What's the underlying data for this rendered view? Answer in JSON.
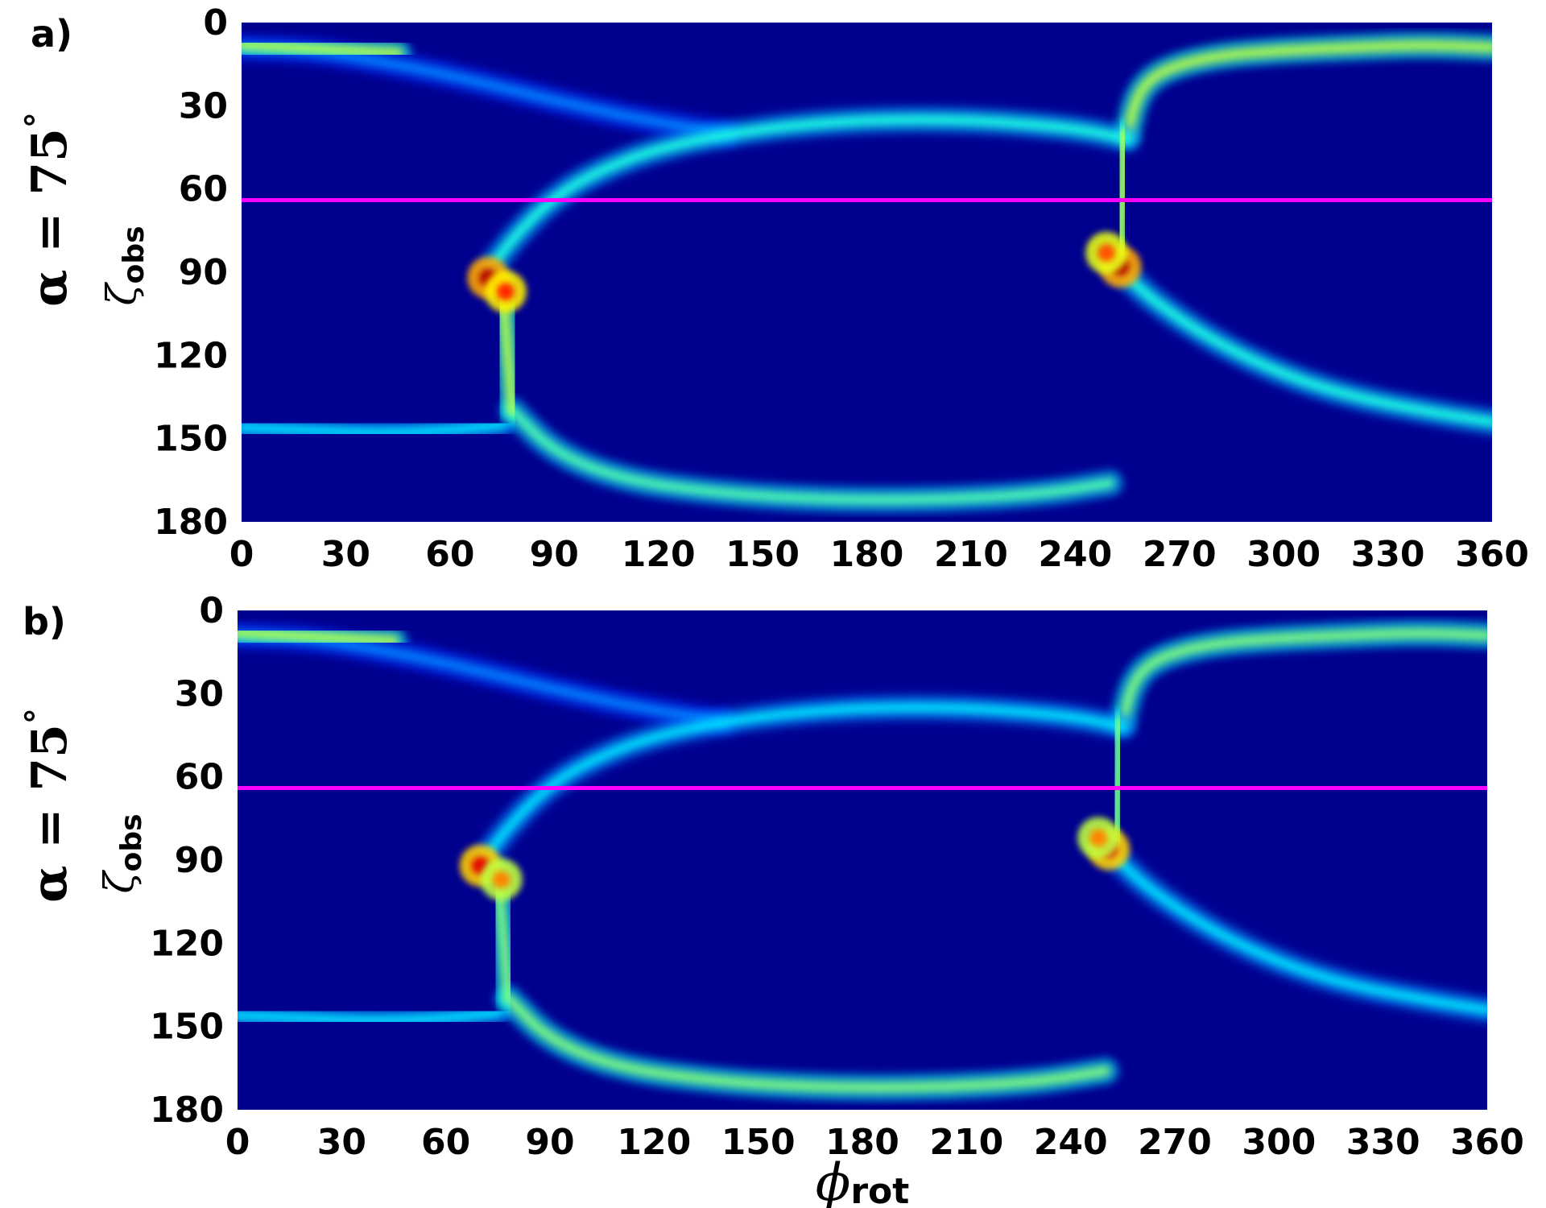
{
  "chart_data": [
    {
      "type": "heatmap",
      "panel_label": "a)",
      "alpha_prefix": "α = 75",
      "alpha_suffix": "°",
      "ylabel": "ζ",
      "ylabel_sub": "obs",
      "xlabel": "",
      "xlim": [
        0,
        360
      ],
      "ylim": [
        0,
        180
      ],
      "y_inverted": true,
      "xticks": [
        "0",
        "30",
        "60",
        "90",
        "120",
        "150",
        "180",
        "210",
        "240",
        "270",
        "300",
        "330",
        "360"
      ],
      "yticks": [
        "0",
        "30",
        "60",
        "90",
        "120",
        "150",
        "180"
      ],
      "colormap": "jet",
      "background_color": "#00008f",
      "hline": {
        "y": 64,
        "color": "#ff00ff"
      },
      "bands": [
        {
          "name": "arc-top-left",
          "points": [
            [
              0,
              9
            ],
            [
              20,
              10
            ],
            [
              40,
              14
            ],
            [
              60,
              19
            ],
            [
              80,
              25
            ],
            [
              100,
              31
            ],
            [
              120,
              36
            ],
            [
              140,
              40
            ]
          ],
          "level": 0.25
        },
        {
          "name": "arc-top-edge",
          "points": [
            [
              0,
              8
            ],
            [
              15,
              9
            ],
            [
              30,
              10
            ],
            [
              45,
              11
            ]
          ],
          "level": 0.55
        },
        {
          "name": "arc-top-right",
          "points": [
            [
              255,
              40
            ],
            [
              258,
              25
            ],
            [
              265,
              17
            ],
            [
              280,
              12
            ],
            [
              300,
              10
            ],
            [
              320,
              9
            ],
            [
              340,
              8
            ],
            [
              360,
              9
            ]
          ],
          "level": 0.55
        },
        {
          "name": "arc-upper-left",
          "points": [
            [
              72,
              88
            ],
            [
              78,
              78
            ],
            [
              88,
              65
            ],
            [
              100,
              55
            ],
            [
              120,
              45
            ],
            [
              150,
              38
            ],
            [
              180,
              35
            ],
            [
              210,
              35
            ],
            [
              240,
              38
            ],
            [
              255,
              42
            ]
          ],
          "level": 0.4
        },
        {
          "name": "arc-lower-right",
          "points": [
            [
              252,
              88
            ],
            [
              262,
              100
            ],
            [
              280,
              115
            ],
            [
              300,
              127
            ],
            [
              320,
              135
            ],
            [
              345,
              141
            ],
            [
              360,
              144
            ]
          ],
          "level": 0.4
        },
        {
          "name": "arc-lower-left",
          "points": [
            [
              0,
              146
            ],
            [
              20,
              147
            ],
            [
              40,
              148
            ],
            [
              60,
              147
            ],
            [
              75,
              145
            ]
          ],
          "level": 0.35
        },
        {
          "name": "arc-bottom",
          "points": [
            [
              78,
              140
            ],
            [
              90,
              155
            ],
            [
              110,
              165
            ],
            [
              140,
              170
            ],
            [
              170,
              172
            ],
            [
              200,
              172
            ],
            [
              230,
              170
            ],
            [
              250,
              166
            ]
          ],
          "level": 0.45
        },
        {
          "name": "bar-left",
          "points": [
            [
              75,
              95
            ],
            [
              76,
              110
            ],
            [
              77,
              125
            ],
            [
              78,
              140
            ]
          ],
          "level": 0.55
        },
        {
          "name": "bar-right",
          "points": [
            [
              254,
              40
            ],
            [
              254,
              55
            ],
            [
              253,
              70
            ],
            [
              253,
              85
            ]
          ],
          "level": 0.55
        }
      ],
      "hotspots": [
        {
          "x": 71,
          "y": 92,
          "level": 0.95
        },
        {
          "x": 76,
          "y": 97,
          "level": 0.85
        },
        {
          "x": 253,
          "y": 88,
          "level": 0.95
        },
        {
          "x": 249,
          "y": 83,
          "level": 0.8
        }
      ]
    },
    {
      "type": "heatmap",
      "panel_label": "b)",
      "alpha_prefix": "α = 75",
      "alpha_suffix": "°",
      "ylabel": "ζ",
      "ylabel_sub": "obs",
      "xlabel": "ϕ",
      "xlabel_sub": "rot",
      "xlim": [
        0,
        360
      ],
      "ylim": [
        0,
        180
      ],
      "y_inverted": true,
      "xticks": [
        "0",
        "30",
        "60",
        "90",
        "120",
        "150",
        "180",
        "210",
        "240",
        "270",
        "300",
        "330",
        "360"
      ],
      "yticks": [
        "0",
        "30",
        "60",
        "90",
        "120",
        "150",
        "180"
      ],
      "colormap": "jet",
      "background_color": "#00008f",
      "hline": {
        "y": 64,
        "color": "#ff00ff"
      },
      "bands": [
        {
          "name": "arc-top-left",
          "points": [
            [
              0,
              9
            ],
            [
              20,
              10
            ],
            [
              40,
              14
            ],
            [
              60,
              19
            ],
            [
              80,
              25
            ],
            [
              100,
              31
            ],
            [
              120,
              36
            ],
            [
              140,
              40
            ]
          ],
          "level": 0.25
        },
        {
          "name": "arc-top-edge",
          "points": [
            [
              0,
              8
            ],
            [
              15,
              9
            ],
            [
              30,
              10
            ],
            [
              45,
              11
            ]
          ],
          "level": 0.55
        },
        {
          "name": "arc-top-right",
          "points": [
            [
              255,
              40
            ],
            [
              258,
              25
            ],
            [
              265,
              17
            ],
            [
              280,
              12
            ],
            [
              300,
              10
            ],
            [
              320,
              9
            ],
            [
              340,
              8
            ],
            [
              360,
              9
            ]
          ],
          "level": 0.5
        },
        {
          "name": "arc-upper-left",
          "points": [
            [
              72,
              88
            ],
            [
              78,
              78
            ],
            [
              88,
              65
            ],
            [
              100,
              55
            ],
            [
              120,
              45
            ],
            [
              150,
              38
            ],
            [
              180,
              35
            ],
            [
              210,
              35
            ],
            [
              240,
              38
            ],
            [
              255,
              42
            ]
          ],
          "level": 0.35
        },
        {
          "name": "arc-lower-right",
          "points": [
            [
              252,
              88
            ],
            [
              262,
              100
            ],
            [
              280,
              115
            ],
            [
              300,
              127
            ],
            [
              320,
              135
            ],
            [
              345,
              141
            ],
            [
              360,
              144
            ]
          ],
          "level": 0.35
        },
        {
          "name": "arc-lower-left",
          "points": [
            [
              0,
              146
            ],
            [
              20,
              147
            ],
            [
              40,
              148
            ],
            [
              60,
              147
            ],
            [
              75,
              145
            ]
          ],
          "level": 0.35
        },
        {
          "name": "arc-bottom",
          "points": [
            [
              78,
              140
            ],
            [
              90,
              155
            ],
            [
              110,
              165
            ],
            [
              140,
              170
            ],
            [
              170,
              172
            ],
            [
              200,
              172
            ],
            [
              230,
              170
            ],
            [
              250,
              166
            ]
          ],
          "level": 0.5
        },
        {
          "name": "bar-left",
          "points": [
            [
              75,
              95
            ],
            [
              76,
              110
            ],
            [
              77,
              125
            ],
            [
              78,
              140
            ]
          ],
          "level": 0.5
        },
        {
          "name": "bar-right",
          "points": [
            [
              254,
              40
            ],
            [
              254,
              55
            ],
            [
              253,
              70
            ],
            [
              253,
              85
            ]
          ],
          "level": 0.5
        }
      ],
      "hotspots": [
        {
          "x": 70,
          "y": 92,
          "level": 0.9
        },
        {
          "x": 76,
          "y": 97,
          "level": 0.75
        },
        {
          "x": 251,
          "y": 86,
          "level": 0.9
        },
        {
          "x": 248,
          "y": 82,
          "level": 0.75
        }
      ]
    }
  ]
}
